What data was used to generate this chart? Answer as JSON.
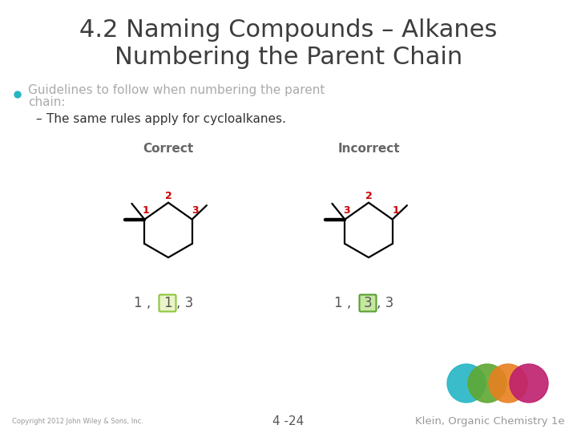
{
  "title_line1": "4.2 Naming Compounds – Alkanes",
  "title_line2": "Numbering the Parent Chain",
  "bullet_color": "#aaaaaa",
  "bullet_text1": "Guidelines to follow when numbering the parent",
  "bullet_text2": "chain:",
  "sub_bullet": "The same rules apply for cycloalkanes.",
  "correct_label": "Correct",
  "incorrect_label": "Incorrect",
  "footer_left": "Copyright 2012 John Wiley & Sons, Inc.",
  "footer_center": "4 -24",
  "footer_right": "Klein, Organic Chemistry 1e",
  "bg_color": "#ffffff",
  "title_color": "#3d3d3d",
  "sub_bullet_color": "#333333",
  "label_color": "#666666",
  "number_color": "#cc0000",
  "box_color_correct": "#8dc63f",
  "box_face_correct": "#eaf4c8",
  "box_color_incorrect": "#5a9e2f",
  "box_face_incorrect": "#c5e8a0",
  "footer_color": "#999999",
  "footer_center_color": "#555555",
  "circle_colors": [
    "#26b5c5",
    "#5fa832",
    "#e88020",
    "#bf1f6e"
  ],
  "teal_bullet": "#26b5c5",
  "text_color_num": "#555555"
}
